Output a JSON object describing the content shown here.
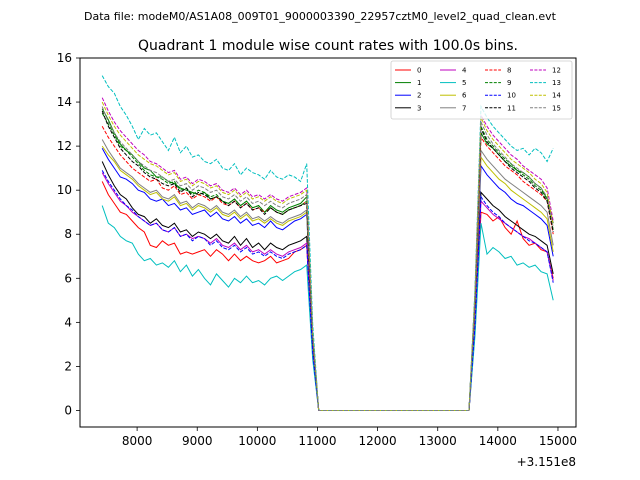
{
  "figure": {
    "suptitle": "Data file: modeM0/AS1A08_009T01_9000003390_22957cztM0_level2_quad_clean.evt"
  },
  "chart_data": {
    "type": "line",
    "title": "Quadrant 1 module wise count rates with 100.0s bins.",
    "xlabel": "",
    "ylabel": "",
    "x_offset_label": "+3.151e8",
    "xlim": [
      7050,
      15300
    ],
    "ylim": [
      -0.75,
      16
    ],
    "xticks": [
      8000,
      9000,
      10000,
      11000,
      12000,
      13000,
      14000,
      15000
    ],
    "xtick_labels": [
      "8000",
      "9000",
      "10000",
      "11000",
      "12000",
      "13000",
      "14000",
      "15000"
    ],
    "yticks": [
      0,
      2,
      4,
      6,
      8,
      10,
      12,
      14,
      16
    ],
    "ytick_labels": [
      "0",
      "2",
      "4",
      "6",
      "8",
      "10",
      "12",
      "14",
      "16"
    ],
    "grid": false,
    "legend_position": "upper right",
    "x_segments": {
      "seg1": {
        "start": 7420,
        "step": 100,
        "count": 35
      },
      "gap": [
        10920,
        11020,
        13520,
        13620
      ],
      "seg2": {
        "start": 13720,
        "step": 100,
        "count": 13
      }
    },
    "series": [
      {
        "name": "0",
        "color": "#ff0000",
        "dash": "solid",
        "seg1": [
          10.4,
          9.8,
          9.4,
          9.0,
          8.9,
          8.6,
          8.3,
          8.1,
          7.5,
          7.4,
          7.7,
          7.5,
          7.6,
          7.1,
          7.2,
          7.1,
          7.2,
          7.3,
          7.0,
          7.3,
          7.1,
          6.8,
          7.1,
          6.8,
          7.0,
          6.8,
          6.7,
          6.8,
          7.0,
          6.7,
          6.8,
          6.9,
          7.2,
          7.3,
          7.5
        ],
        "seg2": [
          9.0,
          8.9,
          8.6,
          8.8,
          8.3,
          8.0,
          8.6,
          7.8,
          7.5,
          7.6,
          7.3,
          7.2,
          6.0
        ]
      },
      {
        "name": "1",
        "color": "#008000",
        "dash": "solid",
        "seg1": [
          13.7,
          13.2,
          12.6,
          12.1,
          11.8,
          11.6,
          11.3,
          11.0,
          10.9,
          10.6,
          10.6,
          10.4,
          10.3,
          10.1,
          10.0,
          9.9,
          9.8,
          9.9,
          9.6,
          9.7,
          9.5,
          9.4,
          9.6,
          9.3,
          9.5,
          9.2,
          9.3,
          9.0,
          9.3,
          9.1,
          9.0,
          9.2,
          9.3,
          9.4,
          9.7
        ],
        "seg2": [
          12.6,
          12.1,
          11.9,
          11.6,
          11.3,
          11.1,
          10.9,
          10.8,
          10.6,
          10.3,
          10.1,
          9.6,
          8.5
        ]
      },
      {
        "name": "2",
        "color": "#0000ff",
        "dash": "solid",
        "seg1": [
          11.9,
          11.4,
          11.0,
          10.6,
          10.5,
          10.3,
          10.0,
          9.9,
          9.6,
          9.5,
          9.6,
          9.3,
          9.4,
          9.1,
          9.2,
          8.9,
          9.0,
          9.1,
          8.8,
          9.0,
          8.7,
          8.6,
          8.8,
          8.5,
          8.7,
          8.4,
          8.5,
          8.3,
          8.6,
          8.3,
          8.2,
          8.4,
          8.6,
          8.7,
          8.9
        ],
        "seg2": [
          11.1,
          10.7,
          10.4,
          10.1,
          9.9,
          9.6,
          9.4,
          9.3,
          9.1,
          8.9,
          8.7,
          8.4,
          7.0
        ]
      },
      {
        "name": "3",
        "color": "#000000",
        "dash": "solid",
        "seg1": [
          11.3,
          10.7,
          10.2,
          9.8,
          9.6,
          9.2,
          8.9,
          8.8,
          8.5,
          8.7,
          8.4,
          8.3,
          8.5,
          8.1,
          8.2,
          7.9,
          8.1,
          8.0,
          7.8,
          8.0,
          7.7,
          7.6,
          7.9,
          7.5,
          7.8,
          7.4,
          7.6,
          7.3,
          7.6,
          7.4,
          7.3,
          7.5,
          7.6,
          7.7,
          7.9
        ],
        "seg2": [
          9.9,
          9.6,
          9.3,
          9.1,
          8.8,
          8.6,
          8.4,
          8.2,
          8.0,
          7.9,
          7.7,
          7.5,
          6.2
        ]
      },
      {
        "name": "4",
        "color": "#bf00bf",
        "dash": "solid",
        "seg1": [
          10.8,
          10.3,
          9.9,
          9.5,
          9.3,
          9.0,
          8.8,
          8.6,
          8.4,
          8.5,
          8.2,
          8.1,
          8.3,
          7.9,
          8.0,
          7.8,
          7.9,
          7.8,
          7.6,
          7.8,
          7.5,
          7.4,
          7.6,
          7.3,
          7.5,
          7.2,
          7.3,
          7.1,
          7.3,
          7.1,
          7.0,
          7.2,
          7.3,
          7.4,
          7.6
        ],
        "seg2": [
          9.5,
          9.2,
          8.9,
          8.7,
          8.5,
          8.3,
          8.1,
          7.9,
          7.8,
          7.6,
          7.4,
          7.2,
          5.9
        ]
      },
      {
        "name": "5",
        "color": "#00bfbf",
        "dash": "solid",
        "seg1": [
          9.3,
          8.5,
          8.3,
          7.9,
          7.7,
          7.6,
          7.1,
          6.8,
          6.9,
          6.6,
          6.7,
          6.5,
          6.8,
          6.3,
          6.6,
          6.1,
          6.4,
          6.0,
          5.7,
          6.2,
          5.9,
          5.6,
          6.0,
          5.8,
          6.1,
          5.8,
          5.9,
          5.7,
          6.0,
          6.1,
          5.9,
          6.1,
          6.3,
          6.4,
          6.6
        ],
        "seg2": [
          8.5,
          7.1,
          7.4,
          7.2,
          6.9,
          7.0,
          6.6,
          6.7,
          6.5,
          6.6,
          6.3,
          6.2,
          5.0
        ]
      },
      {
        "name": "6",
        "color": "#bfbf00",
        "dash": "solid",
        "seg1": [
          12.0,
          11.6,
          11.3,
          10.9,
          10.7,
          10.5,
          10.2,
          10.0,
          9.8,
          9.9,
          9.6,
          9.5,
          9.7,
          9.3,
          9.4,
          9.1,
          9.3,
          9.2,
          9.0,
          9.2,
          8.9,
          8.8,
          9.0,
          8.7,
          8.9,
          8.6,
          8.7,
          8.5,
          8.7,
          8.5,
          8.4,
          8.6,
          8.7,
          8.8,
          9.0
        ],
        "seg2": [
          11.5,
          11.1,
          10.8,
          10.5,
          10.3,
          10.0,
          9.8,
          9.6,
          9.4,
          9.2,
          9.0,
          8.7,
          7.2
        ]
      },
      {
        "name": "7",
        "color": "#808080",
        "dash": "solid",
        "seg1": [
          12.3,
          11.8,
          11.4,
          11.0,
          10.8,
          10.6,
          10.3,
          10.1,
          9.9,
          10.0,
          9.7,
          9.6,
          9.8,
          9.4,
          9.5,
          9.2,
          9.4,
          9.3,
          9.1,
          9.3,
          9.0,
          8.9,
          9.1,
          8.8,
          9.0,
          8.7,
          8.8,
          8.6,
          8.8,
          8.6,
          8.5,
          8.7,
          8.8,
          8.9,
          9.1
        ],
        "seg2": [
          11.8,
          11.4,
          11.1,
          10.8,
          10.5,
          10.3,
          10.1,
          9.9,
          9.7,
          9.5,
          9.3,
          9.0,
          7.5
        ]
      },
      {
        "name": "8",
        "color": "#ff0000",
        "dash": "dashed",
        "seg1": [
          12.9,
          12.4,
          12.0,
          11.6,
          11.3,
          11.0,
          10.8,
          10.6,
          10.4,
          10.5,
          10.1,
          10.0,
          10.2,
          9.8,
          9.9,
          9.6,
          9.8,
          9.7,
          9.5,
          9.7,
          9.4,
          9.3,
          9.5,
          9.2,
          9.4,
          9.1,
          9.2,
          9.0,
          9.2,
          9.0,
          8.9,
          9.1,
          9.2,
          9.3,
          9.5
        ],
        "seg2": [
          12.4,
          12.0,
          11.7,
          11.4,
          11.1,
          10.9,
          10.7,
          10.4,
          10.2,
          10.0,
          9.8,
          9.5,
          8.0
        ]
      },
      {
        "name": "9",
        "color": "#008000",
        "dash": "dashed",
        "seg1": [
          13.5,
          13.0,
          12.5,
          12.0,
          11.8,
          11.5,
          11.2,
          10.9,
          10.7,
          10.6,
          10.5,
          10.3,
          10.4,
          10.0,
          10.1,
          9.8,
          10.0,
          9.9,
          9.7,
          9.8,
          9.5,
          9.4,
          9.6,
          9.3,
          9.5,
          9.2,
          9.3,
          9.0,
          9.2,
          9.0,
          8.9,
          9.1,
          9.2,
          9.3,
          9.5
        ],
        "seg2": [
          12.9,
          12.3,
          12.0,
          11.7,
          11.4,
          11.2,
          10.9,
          10.7,
          10.5,
          10.2,
          10.0,
          9.6,
          8.2
        ]
      },
      {
        "name": "10",
        "color": "#0000ff",
        "dash": "dashed",
        "seg1": [
          10.9,
          10.4,
          10.0,
          9.6,
          9.3,
          9.1,
          8.8,
          8.6,
          8.4,
          8.5,
          8.2,
          8.1,
          8.3,
          7.9,
          8.0,
          7.7,
          7.9,
          7.8,
          7.5,
          7.7,
          7.4,
          7.3,
          7.5,
          7.2,
          7.4,
          7.1,
          7.2,
          7.0,
          7.2,
          7.0,
          6.9,
          7.1,
          7.2,
          7.3,
          7.5
        ],
        "seg2": [
          9.7,
          9.3,
          9.0,
          8.8,
          8.5,
          8.3,
          8.1,
          7.9,
          7.7,
          7.6,
          7.4,
          7.2,
          5.8
        ]
      },
      {
        "name": "11",
        "color": "#000000",
        "dash": "dashed",
        "seg1": [
          13.6,
          12.9,
          12.4,
          11.9,
          11.6,
          11.3,
          11.1,
          10.8,
          10.6,
          10.5,
          10.3,
          10.2,
          10.3,
          9.9,
          10.1,
          9.7,
          9.9,
          9.8,
          9.6,
          9.7,
          9.5,
          9.3,
          9.5,
          9.2,
          9.4,
          9.1,
          9.2,
          8.9,
          9.2,
          9.0,
          8.9,
          9.1,
          9.2,
          9.3,
          9.4
        ],
        "seg2": [
          12.8,
          12.2,
          11.9,
          11.6,
          11.3,
          11.0,
          10.8,
          10.6,
          10.4,
          10.1,
          9.9,
          9.5,
          8.1
        ]
      },
      {
        "name": "12",
        "color": "#bf00bf",
        "dash": "dashed",
        "seg1": [
          14.2,
          13.6,
          13.1,
          12.7,
          12.4,
          12.1,
          11.8,
          11.6,
          11.3,
          11.2,
          11.0,
          10.8,
          10.9,
          10.5,
          10.6,
          10.3,
          10.5,
          10.4,
          10.2,
          10.3,
          10.0,
          9.9,
          10.1,
          9.8,
          10.0,
          9.7,
          9.8,
          9.6,
          9.8,
          9.6,
          9.5,
          9.7,
          9.8,
          9.9,
          10.1
        ],
        "seg2": [
          13.4,
          12.9,
          12.5,
          12.2,
          11.9,
          11.6,
          11.4,
          11.1,
          10.9,
          10.7,
          10.5,
          10.1,
          8.6
        ]
      },
      {
        "name": "13",
        "color": "#00bfbf",
        "dash": "dashed",
        "seg1": [
          15.2,
          14.7,
          14.4,
          13.8,
          13.4,
          12.9,
          12.3,
          12.8,
          12.5,
          12.6,
          12.2,
          11.8,
          12.4,
          11.7,
          12.0,
          11.5,
          11.6,
          11.3,
          11.2,
          11.4,
          11.0,
          10.9,
          11.2,
          10.7,
          11.0,
          10.8,
          10.7,
          10.5,
          10.9,
          10.6,
          10.5,
          10.7,
          10.6,
          10.4,
          11.2
        ],
        "seg2": [
          13.8,
          13.3,
          12.9,
          12.6,
          12.3,
          12.0,
          11.8,
          11.9,
          11.6,
          11.9,
          11.7,
          11.3,
          11.9
        ]
      },
      {
        "name": "14",
        "color": "#bfbf00",
        "dash": "dashed",
        "seg1": [
          14.0,
          13.4,
          12.9,
          12.5,
          12.2,
          11.9,
          11.6,
          11.4,
          11.2,
          11.1,
          10.9,
          10.7,
          10.8,
          10.4,
          10.5,
          10.2,
          10.4,
          10.3,
          10.1,
          10.2,
          9.9,
          9.8,
          10.0,
          9.7,
          9.9,
          9.6,
          9.7,
          9.5,
          9.7,
          9.5,
          9.4,
          9.6,
          9.7,
          9.8,
          10.0
        ],
        "seg2": [
          13.3,
          12.7,
          12.3,
          12.0,
          11.7,
          11.4,
          11.2,
          11.0,
          10.8,
          10.5,
          10.3,
          9.9,
          8.4
        ]
      },
      {
        "name": "15",
        "color": "#808080",
        "dash": "dashed",
        "seg1": [
          13.8,
          13.1,
          12.6,
          12.2,
          11.9,
          11.6,
          11.3,
          11.1,
          10.9,
          10.8,
          10.6,
          10.4,
          10.5,
          10.2,
          10.3,
          10.0,
          10.2,
          10.1,
          9.9,
          10.0,
          9.7,
          9.6,
          9.8,
          9.5,
          9.7,
          9.4,
          9.5,
          9.3,
          9.5,
          9.3,
          9.2,
          9.4,
          9.5,
          9.6,
          9.8
        ],
        "seg2": [
          13.1,
          12.5,
          12.1,
          11.8,
          11.5,
          11.2,
          11.0,
          10.8,
          10.6,
          10.3,
          10.1,
          9.7,
          8.3
        ]
      }
    ]
  }
}
